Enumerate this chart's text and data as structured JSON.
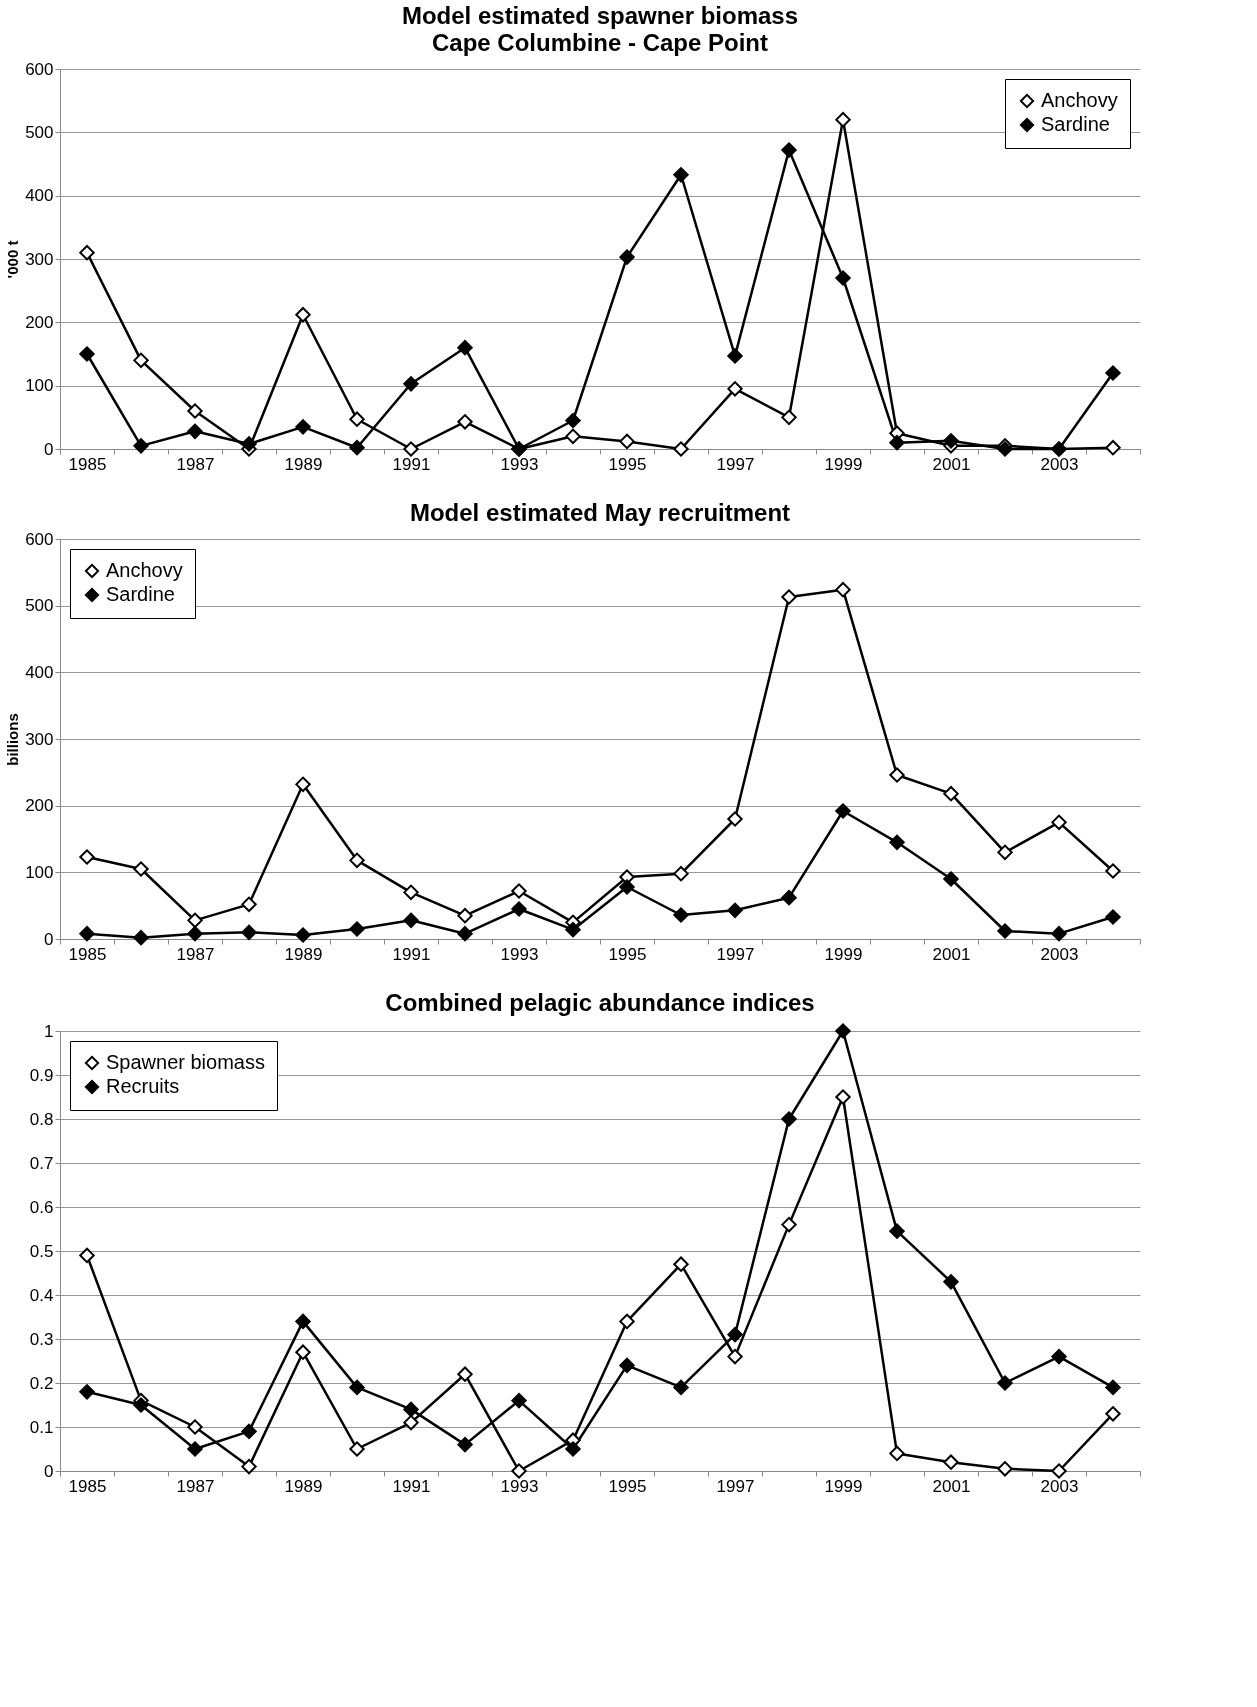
{
  "chart_data": [
    {
      "type": "line",
      "title": "Model estimated spawner biomass",
      "subtitle": "Cape Columbine - Cape Point",
      "ylabel": "'000 t",
      "categories": [
        "1985",
        null,
        "1987",
        null,
        "1989",
        null,
        "1991",
        null,
        "1993",
        null,
        "1995",
        null,
        "1997",
        null,
        "1999",
        null,
        "2001",
        null,
        "2003",
        null
      ],
      "series": [
        {
          "name": "Anchovy",
          "color": "#000000",
          "values": [
            310,
            140,
            60,
            0,
            212,
            47,
            0,
            43,
            0,
            20,
            12,
            0,
            95,
            50,
            520,
            25,
            5,
            5,
            0,
            2
          ]
        },
        {
          "name": "Sardine",
          "color": "#000000",
          "values": [
            150,
            5,
            28,
            8,
            35,
            2,
            103,
            160,
            0,
            45,
            303,
            433,
            147,
            472,
            270,
            10,
            13,
            0,
            0,
            120
          ]
        }
      ],
      "ylim": [
        0,
        600
      ],
      "yticks": [
        0,
        100,
        200,
        300,
        400,
        500,
        600
      ],
      "grid": "y",
      "legend": "top right",
      "marker": "diamond",
      "line_style": "solid"
    },
    {
      "type": "line",
      "title": "Model estimated May recruitment",
      "ylabel": "billions",
      "categories": [
        "1985",
        null,
        "1987",
        null,
        "1989",
        null,
        "1991",
        null,
        "1993",
        null,
        "1995",
        null,
        "1997",
        null,
        "1999",
        null,
        "2001",
        null,
        "2003",
        null
      ],
      "series": [
        {
          "name": "Anchovy",
          "color": "#000000",
          "values": [
            123,
            105,
            28,
            52,
            232,
            118,
            70,
            35,
            72,
            25,
            93,
            98,
            180,
            513,
            524,
            246,
            218,
            130,
            175,
            102
          ]
        },
        {
          "name": "Sardine",
          "color": "#000000",
          "values": [
            8,
            2,
            8,
            10,
            6,
            15,
            28,
            8,
            45,
            14,
            78,
            36,
            43,
            62,
            192,
            145,
            90,
            12,
            8,
            33
          ]
        }
      ],
      "ylim": [
        0,
        600
      ],
      "yticks": [
        0,
        100,
        200,
        300,
        400,
        500,
        600
      ],
      "grid": "y",
      "legend": "top left",
      "marker": "diamond",
      "line_style": "solid"
    },
    {
      "type": "line",
      "title": "Combined pelagic abundance indices",
      "categories": [
        "1985",
        null,
        "1987",
        null,
        "1989",
        null,
        "1991",
        null,
        "1993",
        null,
        "1995",
        null,
        "1997",
        null,
        "1999",
        null,
        "2001",
        null,
        "2003",
        null
      ],
      "series": [
        {
          "name": "Spawner biomass",
          "color": "#000000",
          "values": [
            0.49,
            0.16,
            0.1,
            0.01,
            0.27,
            0.05,
            0.11,
            0.22,
            0,
            0.07,
            0.34,
            0.47,
            0.26,
            0.56,
            0.85,
            0.04,
            0.02,
            0.005,
            0,
            0.13
          ]
        },
        {
          "name": "Recruits",
          "color": "#000000",
          "values": [
            0.18,
            0.15,
            0.05,
            0.09,
            0.34,
            0.19,
            0.14,
            0.06,
            0.16,
            0.05,
            0.24,
            0.19,
            0.31,
            0.8,
            1,
            0.545,
            0.43,
            0.2,
            0.26,
            0.19
          ]
        }
      ],
      "ylim": [
        0,
        1
      ],
      "yticks": [
        0,
        0.1,
        0.2,
        0.3,
        0.4,
        0.5,
        0.6,
        0.7,
        0.8,
        0.9,
        1
      ],
      "grid": "y",
      "legend": "top left",
      "marker": "diamond",
      "line_style": "solid"
    }
  ]
}
